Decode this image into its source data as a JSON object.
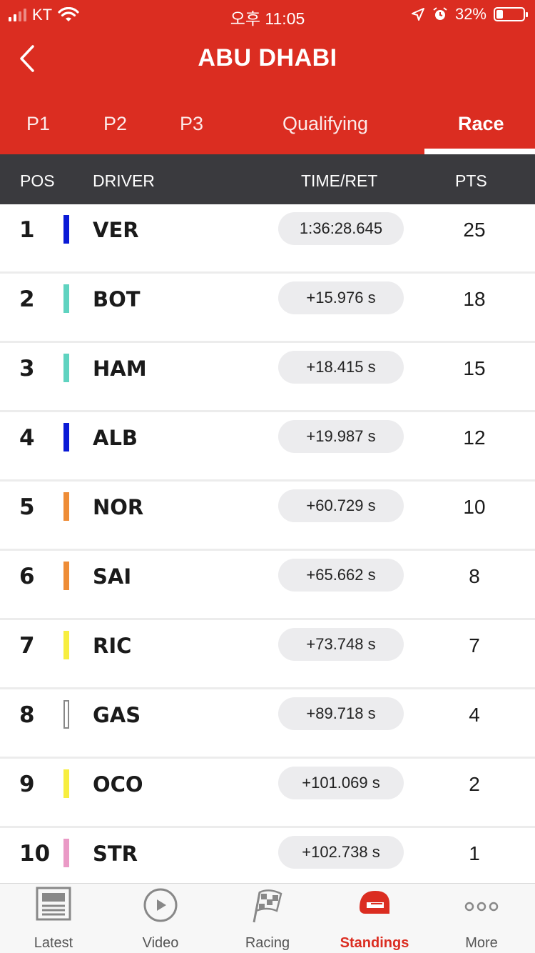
{
  "status_bar": {
    "carrier": "KT",
    "time": "오후 11:05",
    "battery": "32%"
  },
  "header": {
    "title": "ABU DHABI"
  },
  "tabs": [
    {
      "label": "P1",
      "active": false
    },
    {
      "label": "P2",
      "active": false
    },
    {
      "label": "P3",
      "active": false
    },
    {
      "label": "Qualifying",
      "active": false
    },
    {
      "label": "Race",
      "active": true
    }
  ],
  "columns": {
    "pos": "POS",
    "driver": "DRIVER",
    "time": "TIME/RET",
    "pts": "PTS"
  },
  "results": [
    {
      "pos": "1",
      "driver": "VER",
      "time": "1:36:28.645",
      "pts": "25",
      "team_color": "#0a1ad6"
    },
    {
      "pos": "2",
      "driver": "BOT",
      "time": "+15.976 s",
      "pts": "18",
      "team_color": "#5fd3c0"
    },
    {
      "pos": "3",
      "driver": "HAM",
      "time": "+18.415 s",
      "pts": "15",
      "team_color": "#5fd3c0"
    },
    {
      "pos": "4",
      "driver": "ALB",
      "time": "+19.987 s",
      "pts": "12",
      "team_color": "#0a1ad6"
    },
    {
      "pos": "5",
      "driver": "NOR",
      "time": "+60.729 s",
      "pts": "10",
      "team_color": "#ee8c36"
    },
    {
      "pos": "6",
      "driver": "SAI",
      "time": "+65.662 s",
      "pts": "8",
      "team_color": "#ee8c36"
    },
    {
      "pos": "7",
      "driver": "RIC",
      "time": "+73.748 s",
      "pts": "7",
      "team_color": "#f7ee3f"
    },
    {
      "pos": "8",
      "driver": "GAS",
      "time": "+89.718 s",
      "pts": "4",
      "team_color": "#ffffff"
    },
    {
      "pos": "9",
      "driver": "OCO",
      "time": "+101.069 s",
      "pts": "2",
      "team_color": "#f7ee3f"
    },
    {
      "pos": "10",
      "driver": "STR",
      "time": "+102.738 s",
      "pts": "1",
      "team_color": "#ea9ac6"
    }
  ],
  "bottom_nav": [
    {
      "label": "Latest",
      "icon": "news-icon",
      "active": false
    },
    {
      "label": "Video",
      "icon": "play-icon",
      "active": false
    },
    {
      "label": "Racing",
      "icon": "checkered-flag-icon",
      "active": false
    },
    {
      "label": "Standings",
      "icon": "helmet-icon",
      "active": true
    },
    {
      "label": "More",
      "icon": "more-dots-icon",
      "active": false
    }
  ],
  "colors": {
    "brand_red": "#db2d21",
    "column_header_bg": "#3a3a3e"
  }
}
